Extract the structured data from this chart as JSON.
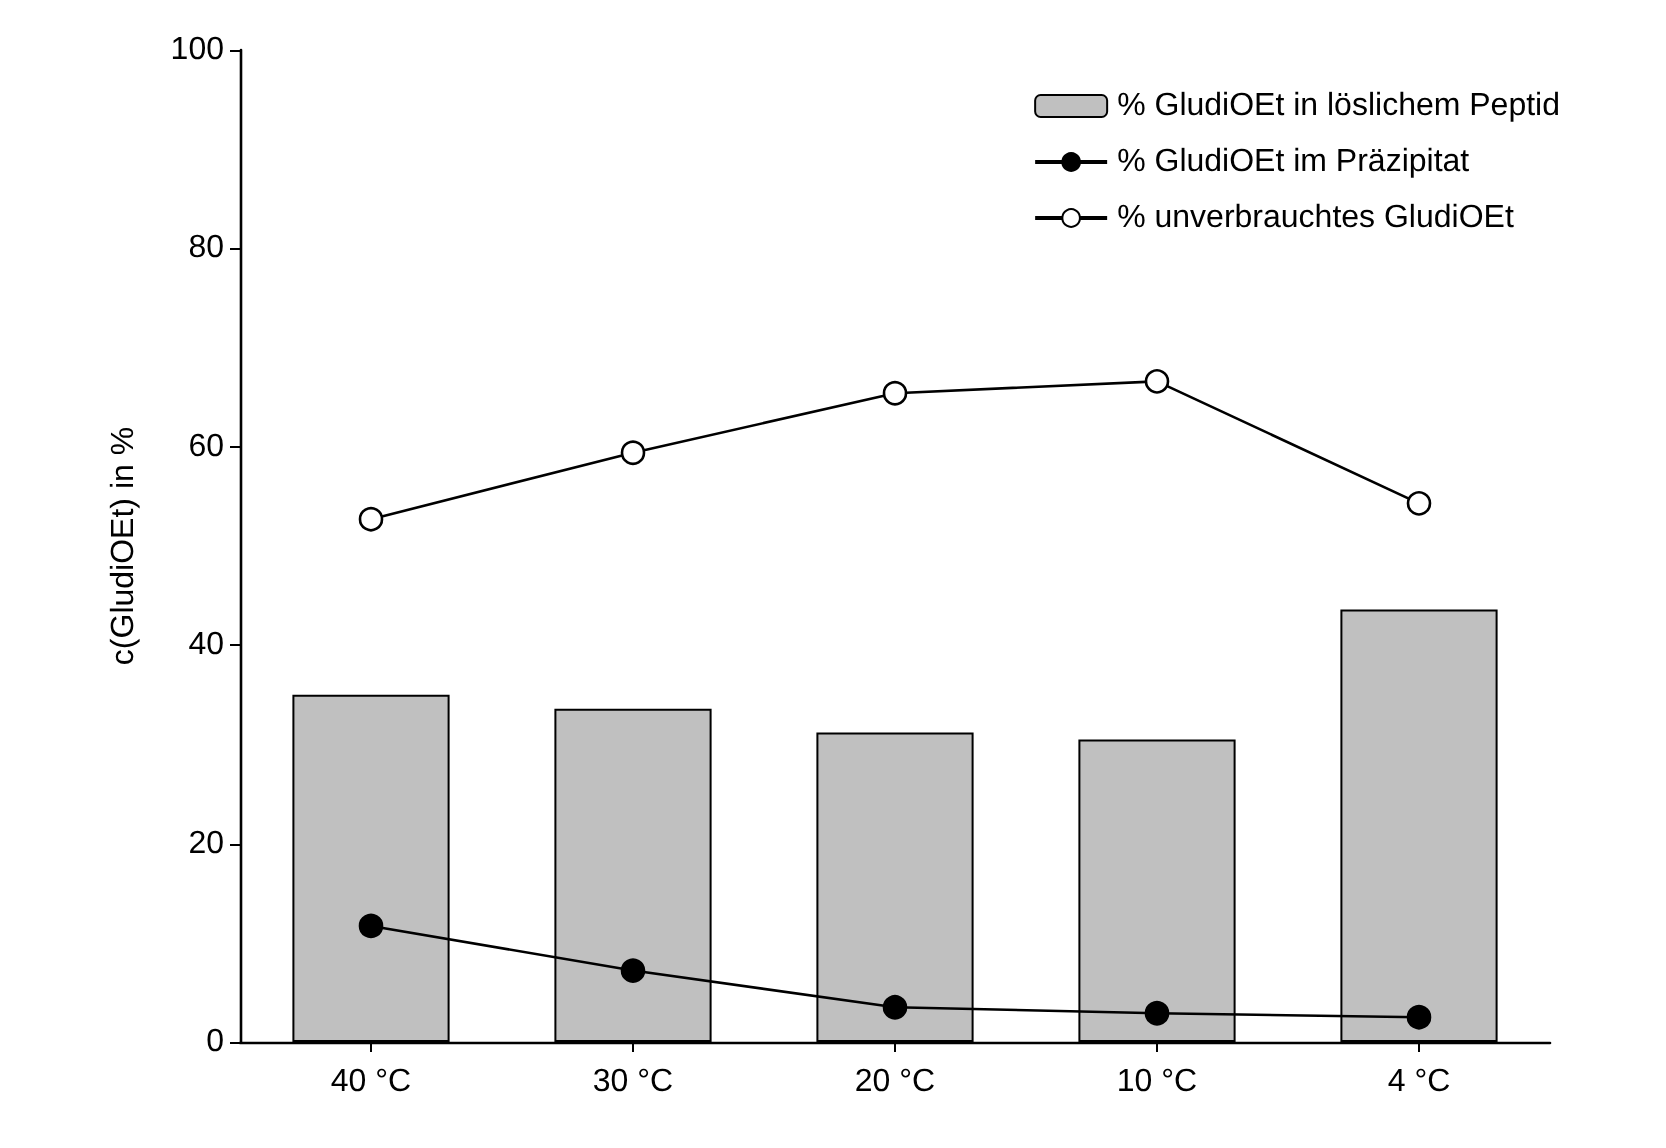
{
  "chart_data": {
    "type": "bar",
    "ylabel": "c(GludiOEt) in %",
    "categories": [
      "40 °C",
      "30 °C",
      "20 °C",
      "10 °C",
      "4 °C"
    ],
    "series": [
      {
        "name": "% GludiOEt in löslichem Peptid",
        "color": "#c0c0c0",
        "values": [
          35.0,
          33.6,
          31.2,
          30.5,
          43.6
        ]
      },
      {
        "name": "% GludiOEt im Präzipitat",
        "type": "line",
        "color": "#000000",
        "values": [
          11.7,
          7.2,
          3.5,
          2.9,
          2.5
        ]
      },
      {
        "name": "% unverbrauchtes GludiOEt",
        "type": "line",
        "color": "#ffffff",
        "values": [
          52.7,
          59.4,
          65.4,
          66.6,
          54.3
        ]
      }
    ],
    "ylim": [
      0,
      100
    ],
    "yticks": [
      0,
      20,
      40,
      60,
      80,
      100
    ],
    "grid": false,
    "legend": "top right",
    "marker": "circle",
    "line_style": "solid"
  }
}
